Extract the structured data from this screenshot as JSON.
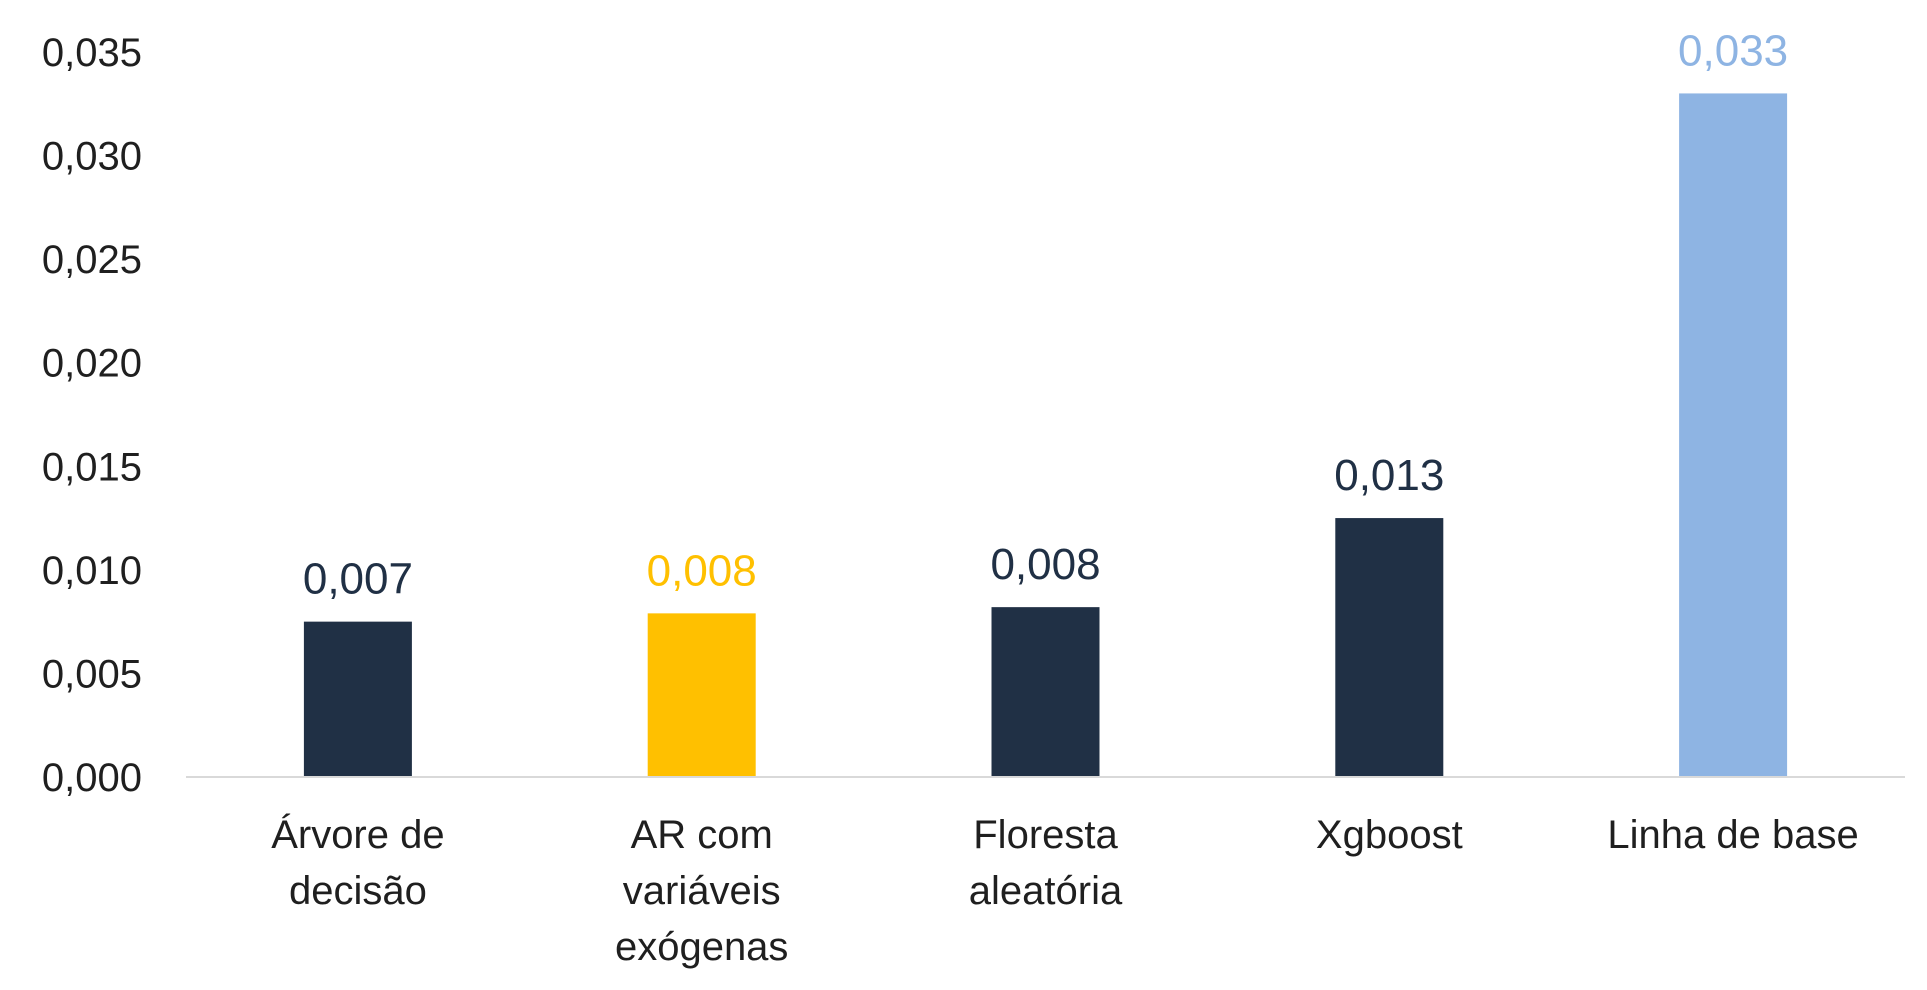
{
  "chart_data": {
    "type": "bar",
    "categories": [
      [
        "Árvore de",
        "decisão"
      ],
      [
        "AR com",
        "variáveis",
        "exógenas"
      ],
      [
        "Floresta",
        "aleatória"
      ],
      [
        "Xgboost"
      ],
      [
        "Linha de base"
      ]
    ],
    "values": [
      0.0075,
      0.0079,
      0.0082,
      0.0125,
      0.033
    ],
    "data_labels": [
      "0,007",
      "0,008",
      "0,008",
      "0,013",
      "0,033"
    ],
    "bar_colors": [
      "#203045",
      "#FFC000",
      "#203045",
      "#203045",
      "#8EB4E3"
    ],
    "label_colors": [
      "#203045",
      "#FFC000",
      "#203045",
      "#203045",
      "#8EB4E3"
    ],
    "ylim": [
      0,
      0.035
    ],
    "yticks": [
      0,
      0.005,
      0.01,
      0.015,
      0.02,
      0.025,
      0.03,
      0.035
    ],
    "ytick_labels": [
      "0,000",
      "0,005",
      "0,010",
      "0,015",
      "0,020",
      "0,025",
      "0,030",
      "0,035"
    ],
    "title": "",
    "xlabel": "",
    "ylabel": "",
    "grid": false,
    "legend": "none",
    "axis_color": "#D9D9D9"
  }
}
